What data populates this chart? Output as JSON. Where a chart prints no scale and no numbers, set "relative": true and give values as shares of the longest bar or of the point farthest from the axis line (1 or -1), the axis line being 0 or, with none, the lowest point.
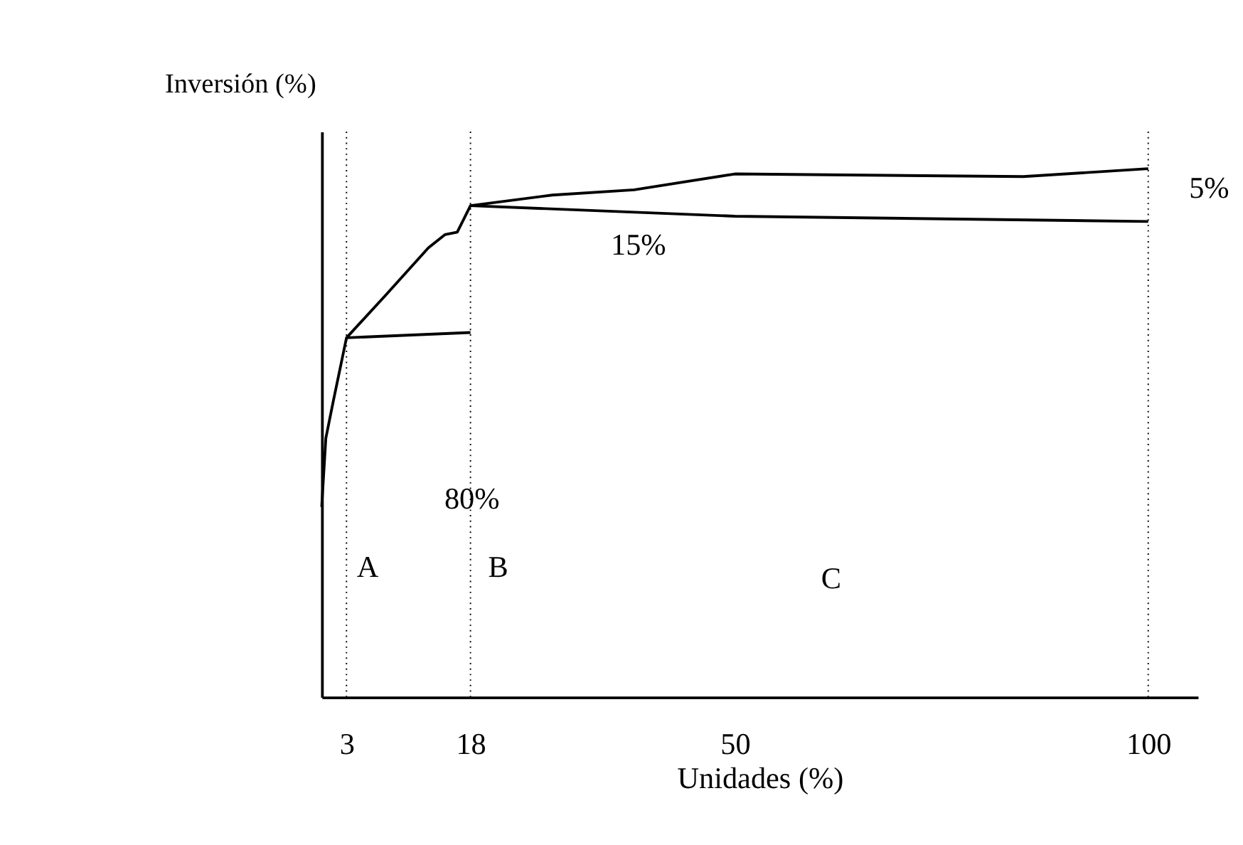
{
  "chart_data": {
    "type": "line",
    "relative": true,
    "xlabel": "Unidades (%)",
    "ylabel": "Inversión (%)",
    "xlim": [
      0,
      106
    ],
    "xticks": [
      3,
      18,
      50,
      100
    ],
    "grid": false,
    "marker": "none",
    "line_style": "solid",
    "series": [
      {
        "color": "#000000",
        "x": [
          0,
          0.5,
          1.4,
          3,
          7.7,
          12.9,
          14.9,
          16.4,
          18,
          27.9,
          37.8,
          50,
          84.9,
          100
        ],
        "values": [
          0.36,
          0.49,
          0.56,
          0.68,
          0.76,
          0.85,
          0.875,
          0.88,
          0.93,
          0.95,
          0.96,
          0.99,
          0.985,
          1
        ]
      },
      {
        "color": "#000000",
        "x": [
          3,
          18
        ],
        "values": [
          0.68,
          0.69
        ]
      },
      {
        "color": "#000000",
        "x": [
          18,
          50,
          100
        ],
        "values": [
          0.93,
          0.91,
          0.9
        ]
      }
    ],
    "ref_lines": [
      {
        "axis": "x",
        "value": 3,
        "line_style": "dotted",
        "color": "#000000"
      },
      {
        "axis": "x",
        "value": 18,
        "line_style": "dotted",
        "color": "#000000"
      },
      {
        "axis": "x",
        "value": 100,
        "line_style": "dotted",
        "color": "#000000"
      }
    ],
    "annotations": [
      "80%",
      "15%",
      "5%",
      "A",
      "B",
      "C"
    ]
  }
}
